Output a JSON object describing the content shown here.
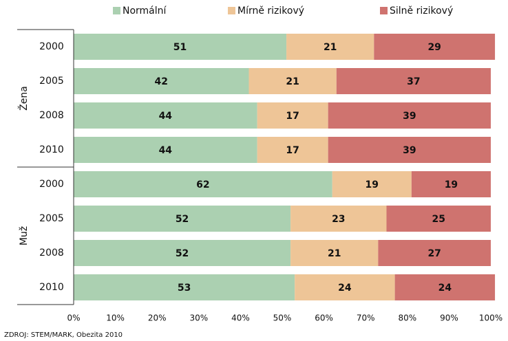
{
  "chart_data": {
    "type": "stacked-barh",
    "groups": [
      {
        "label": "Žena",
        "categories": [
          "2000",
          "2005",
          "2008",
          "2010"
        ]
      },
      {
        "label": "Muž",
        "categories": [
          "2000",
          "2005",
          "2008",
          "2010"
        ]
      }
    ],
    "series": [
      {
        "name": "Normální",
        "color": "#abd0b1",
        "values": [
          51,
          42,
          44,
          44,
          62,
          52,
          52,
          53
        ]
      },
      {
        "name": "Mírně rizikový",
        "color": "#eec597",
        "values": [
          21,
          21,
          17,
          17,
          19,
          23,
          21,
          24
        ]
      },
      {
        "name": "Silně rizikový",
        "color": "#cf736f",
        "values": [
          29,
          37,
          39,
          39,
          19,
          25,
          27,
          24
        ]
      }
    ],
    "xlim": [
      0,
      100
    ],
    "xticks": [
      {
        "value": 0,
        "label": "0%"
      },
      {
        "value": 10,
        "label": "10%"
      },
      {
        "value": 20,
        "label": "20%"
      },
      {
        "value": 30,
        "label": "30%"
      },
      {
        "value": 40,
        "label": "40%"
      },
      {
        "value": 50,
        "label": "50%"
      },
      {
        "value": 60,
        "label": "60%"
      },
      {
        "value": 70,
        "label": "70%"
      },
      {
        "value": 80,
        "label": "80%"
      },
      {
        "value": 90,
        "label": "90%"
      },
      {
        "value": 100,
        "label": "100%"
      }
    ],
    "legend": "top",
    "source": "ZDROJ: STEM/MARK, Obezita 2010"
  }
}
